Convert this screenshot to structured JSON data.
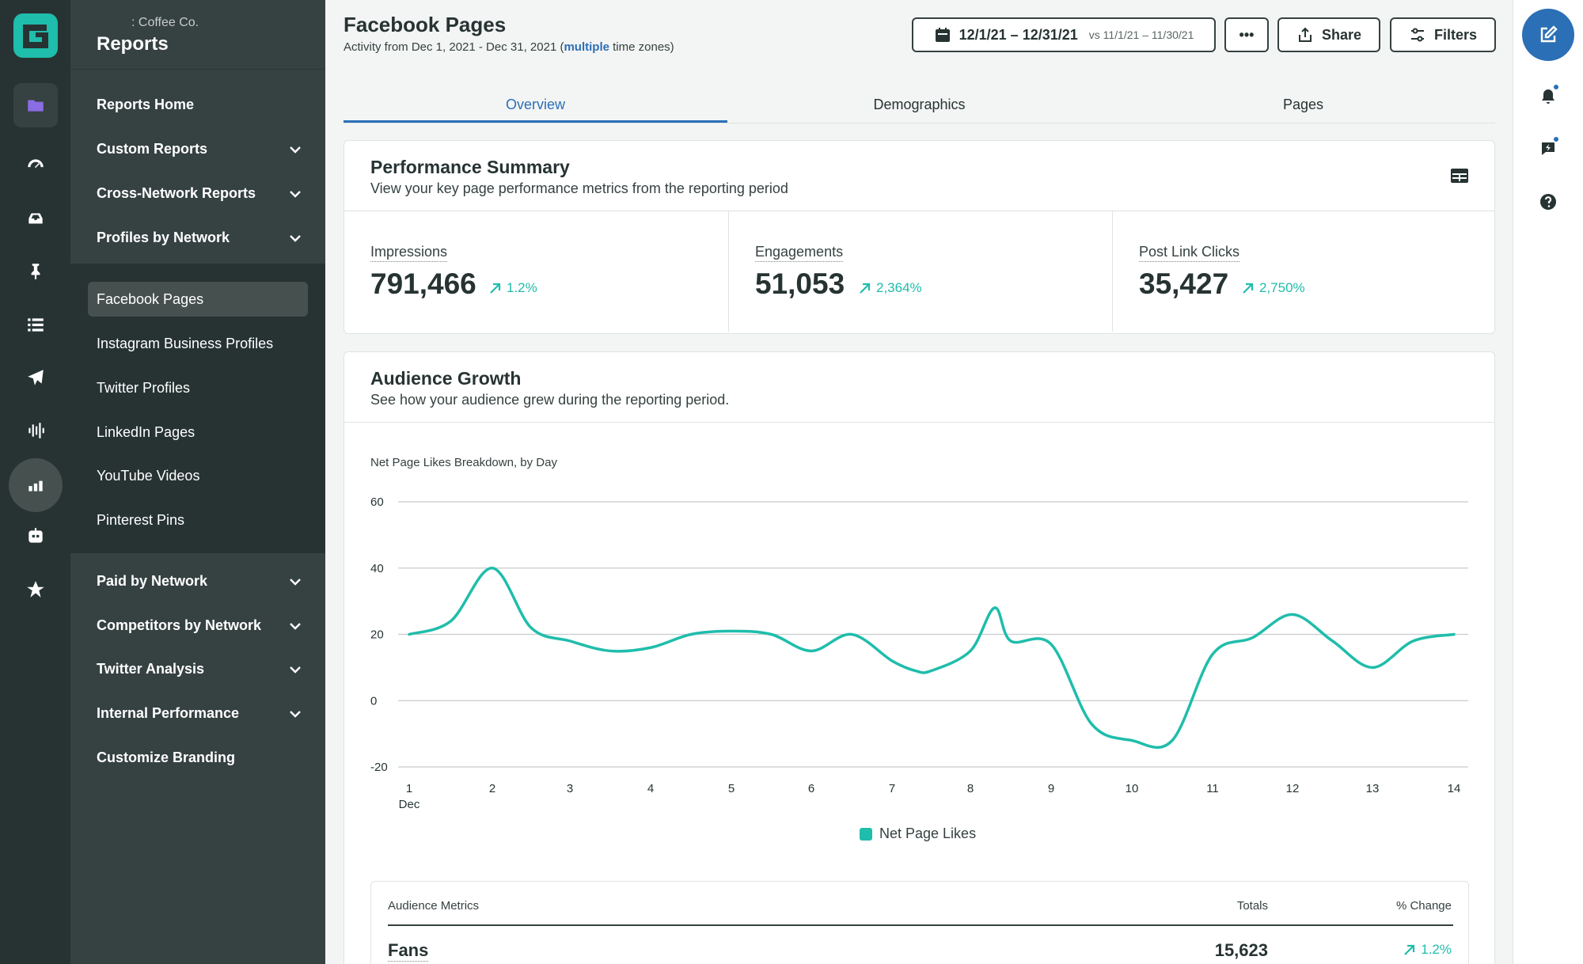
{
  "nav": {
    "org": ": Coffee Co.",
    "title": "Reports",
    "top_items": [
      "Reports Home",
      "Custom Reports",
      "Cross-Network Reports",
      "Profiles by Network"
    ],
    "sub_items": [
      "Facebook Pages",
      "Instagram Business Profiles",
      "Twitter Profiles",
      "LinkedIn Pages",
      "YouTube Videos",
      "Pinterest Pins"
    ],
    "bottom_items": [
      "Paid by Network",
      "Competitors by Network",
      "Twitter Analysis",
      "Internal Performance",
      "Customize Branding"
    ]
  },
  "header": {
    "title": "Facebook Pages",
    "subtitle_pre": "Activity from Dec 1, 2021 - Dec 31, 2021 (",
    "subtitle_link": "multiple",
    "subtitle_post": " time zones)",
    "date_range": "12/1/21 – 12/31/21",
    "compare_range": "vs 11/1/21 – 11/30/21",
    "more_label": "•••",
    "share_label": "Share",
    "filters_label": "Filters"
  },
  "tabs": [
    "Overview",
    "Demographics",
    "Pages"
  ],
  "summary": {
    "title": "Performance Summary",
    "desc": "View your key page performance metrics from the reporting period",
    "metrics": [
      {
        "label": "Impressions",
        "value": "791,466",
        "change": "1.2%"
      },
      {
        "label": "Engagements",
        "value": "51,053",
        "change": "2,364%"
      },
      {
        "label": "Post Link Clicks",
        "value": "35,427",
        "change": "2,750%"
      }
    ]
  },
  "growth": {
    "title": "Audience Growth",
    "desc": "See how your audience grew during the reporting period.",
    "table": {
      "headers": [
        "Audience Metrics",
        "Totals",
        "% Change"
      ],
      "row": {
        "metric": "Fans",
        "total": "15,623",
        "change": "1.2%"
      }
    }
  },
  "colors": {
    "accent": "#2b6fb6",
    "series": "#1fbdab",
    "rail": "#273333",
    "panel": "#364141"
  },
  "chart_data": {
    "type": "line",
    "title": "Net Page Likes Breakdown, by Day",
    "x_sub_label": "Dec",
    "x": [
      1,
      1.5,
      2,
      2.5,
      3,
      3.5,
      4,
      4.5,
      5,
      5.5,
      6,
      6.5,
      7,
      7.3,
      7.5,
      8,
      8.3,
      8.5,
      9,
      9.5,
      10,
      10.5,
      11,
      11.5,
      12,
      12.5,
      13,
      13.5,
      14
    ],
    "series": [
      {
        "name": "Net Page Likes",
        "color": "#1fbdab",
        "values": [
          20,
          24,
          40,
          22,
          18,
          15,
          16,
          20,
          21,
          20,
          15,
          20,
          12,
          9,
          9,
          15,
          28,
          18,
          17,
          -7,
          -12,
          -12,
          14,
          19,
          26,
          18,
          10,
          18,
          20
        ]
      }
    ],
    "ylim": [
      -20,
      60
    ],
    "yticks": [
      60,
      40,
      20,
      0,
      -20
    ],
    "xticks": [
      1,
      2,
      3,
      4,
      5,
      6,
      7,
      8,
      9,
      10,
      11,
      12,
      13,
      14
    ],
    "legend": "bottom-center",
    "grid": true
  }
}
